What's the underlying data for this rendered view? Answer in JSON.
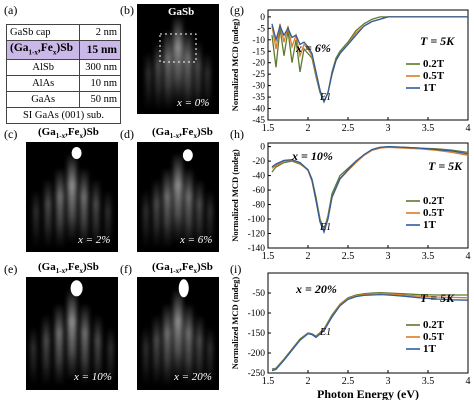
{
  "panel_labels": {
    "a": "(a)",
    "b": "(b)",
    "c": "(c)",
    "d": "(d)",
    "e": "(e)",
    "f": "(f)",
    "g": "(g)",
    "h": "(h)",
    "i": "(i)"
  },
  "stack": [
    {
      "layer": "GaSb cap",
      "thickness": "2 nm"
    },
    {
      "layer": "(Ga1-x,Fex)Sb",
      "thickness": "15 nm",
      "highlight": true
    },
    {
      "layer": "AlSb",
      "thickness": "300 nm"
    },
    {
      "layer": "AlAs",
      "thickness": "10 nm"
    },
    {
      "layer": "GaAs",
      "thickness": "50 nm"
    },
    {
      "layer": "SI GaAs (001) sub.",
      "thickness": ""
    }
  ],
  "rheed": {
    "b": {
      "title": "GaSb",
      "x": "x = 0%"
    },
    "c": {
      "title": "(Ga1-x,Fex)Sb",
      "x": "x = 2%"
    },
    "d": {
      "title": "(Ga1-x,Fex)Sb",
      "x": "x = 6%"
    },
    "e": {
      "title": "(Ga1-x,Fex)Sb",
      "x": "x = 10%"
    },
    "f": {
      "title": "(Ga1-x,Fex)Sb",
      "x": "x = 20%"
    }
  },
  "chart_data": [
    {
      "panel": "g",
      "type": "line",
      "ylabel": "Normalized MCD (mdeg)",
      "xlabel": "",
      "xlim": [
        1.5,
        4
      ],
      "ylim": [
        -45,
        3
      ],
      "xticks": [
        "1.5",
        "2",
        "2.5",
        "3",
        "3.5",
        "4"
      ],
      "yticks": [
        "0",
        "-5",
        "-10",
        "-15",
        "-20",
        "-25",
        "-30",
        "-35",
        "-40",
        "-45"
      ],
      "annotations": [
        "x = 6%",
        "T = 5K",
        "E1"
      ],
      "series": [
        {
          "name": "0.2T",
          "color": "#5e7a2c",
          "x": [
            1.55,
            1.6,
            1.65,
            1.7,
            1.75,
            1.8,
            1.85,
            1.9,
            1.95,
            2.0,
            2.05,
            2.1,
            2.15,
            2.2,
            2.25,
            2.3,
            2.35,
            2.4,
            2.5,
            2.6,
            2.7,
            2.8,
            2.9,
            3.0,
            3.2,
            3.4,
            3.6,
            3.8,
            4.0
          ],
          "y": [
            -8,
            -22,
            -5,
            -17,
            -6,
            -20,
            -10,
            -24,
            -14,
            -16,
            -18,
            -26,
            -33,
            -37,
            -33,
            -24,
            -18,
            -15,
            -11,
            -6,
            -3,
            -1,
            0,
            0,
            0,
            0,
            0,
            0,
            0
          ]
        },
        {
          "name": "0.5T",
          "color": "#d97d2a",
          "x": [
            1.55,
            1.6,
            1.65,
            1.7,
            1.75,
            1.8,
            1.85,
            1.9,
            1.95,
            2.0,
            2.05,
            2.1,
            2.15,
            2.2,
            2.25,
            2.3,
            2.35,
            2.4,
            2.5,
            2.6,
            2.7,
            2.8,
            2.9,
            3.0,
            3.2,
            3.4,
            3.6,
            3.8,
            4.0
          ],
          "y": [
            -4,
            -14,
            -3,
            -11,
            -4,
            -13,
            -8,
            -17,
            -12,
            -14,
            -17,
            -25,
            -32,
            -37,
            -33,
            -25,
            -19,
            -16,
            -12,
            -7,
            -4,
            -2,
            -1,
            0,
            0,
            0,
            0,
            0,
            0
          ]
        },
        {
          "name": "1T",
          "color": "#2f5d9e",
          "x": [
            1.55,
            1.6,
            1.65,
            1.7,
            1.75,
            1.8,
            1.85,
            1.9,
            1.95,
            2.0,
            2.05,
            2.1,
            2.15,
            2.2,
            2.25,
            2.3,
            2.35,
            2.4,
            2.5,
            2.6,
            2.7,
            2.8,
            2.9,
            3.0,
            3.2,
            3.4,
            3.6,
            3.8,
            4.0
          ],
          "y": [
            -3,
            -10,
            -4,
            -8,
            -5,
            -9,
            -8,
            -12,
            -11,
            -13,
            -16,
            -24,
            -32,
            -37,
            -33,
            -25,
            -19,
            -16,
            -12,
            -8,
            -4,
            -2,
            -1,
            0,
            0,
            0,
            0,
            0,
            0
          ]
        }
      ]
    },
    {
      "panel": "h",
      "type": "line",
      "ylabel": "Normalized MCD (mdeg)",
      "xlabel": "",
      "xlim": [
        1.5,
        4
      ],
      "ylim": [
        -140,
        5
      ],
      "xticks": [
        "1.5",
        "2",
        "2.5",
        "3",
        "3.5",
        "4"
      ],
      "yticks": [
        "0",
        "-20",
        "-40",
        "-60",
        "-80",
        "-100",
        "-120",
        "-140"
      ],
      "annotations": [
        "x = 10%",
        "T = 5K",
        "E1"
      ],
      "series": [
        {
          "name": "0.2T",
          "color": "#5e7a2c",
          "x": [
            1.55,
            1.6,
            1.7,
            1.8,
            1.9,
            2.0,
            2.05,
            2.1,
            2.15,
            2.2,
            2.25,
            2.3,
            2.4,
            2.5,
            2.6,
            2.7,
            2.8,
            2.9,
            3.0,
            3.2,
            3.4,
            3.6,
            3.8,
            4.0
          ],
          "y": [
            -35,
            -28,
            -22,
            -20,
            -24,
            -32,
            -45,
            -70,
            -100,
            -115,
            -95,
            -65,
            -40,
            -30,
            -20,
            -12,
            -5,
            -2,
            0,
            -1,
            -2,
            -3,
            -5,
            -8
          ]
        },
        {
          "name": "0.5T",
          "color": "#d97d2a",
          "x": [
            1.55,
            1.6,
            1.7,
            1.8,
            1.9,
            2.0,
            2.05,
            2.1,
            2.15,
            2.2,
            2.25,
            2.3,
            2.4,
            2.5,
            2.6,
            2.7,
            2.8,
            2.9,
            3.0,
            3.2,
            3.4,
            3.6,
            3.8,
            4.0
          ],
          "y": [
            -30,
            -26,
            -20,
            -19,
            -23,
            -33,
            -48,
            -75,
            -103,
            -116,
            -98,
            -70,
            -45,
            -33,
            -22,
            -12,
            -5,
            -2,
            -1,
            -2,
            -3,
            -5,
            -8,
            -12
          ]
        },
        {
          "name": "1T",
          "color": "#2f5d9e",
          "x": [
            1.55,
            1.6,
            1.7,
            1.8,
            1.9,
            2.0,
            2.05,
            2.1,
            2.15,
            2.2,
            2.25,
            2.3,
            2.4,
            2.5,
            2.6,
            2.7,
            2.8,
            2.9,
            3.0,
            3.2,
            3.4,
            3.6,
            3.8,
            4.0
          ],
          "y": [
            -28,
            -24,
            -19,
            -18,
            -22,
            -32,
            -46,
            -74,
            -104,
            -118,
            -100,
            -70,
            -44,
            -32,
            -20,
            -11,
            -4,
            -1,
            0,
            -1,
            -2,
            -4,
            -6,
            -10
          ]
        }
      ]
    },
    {
      "panel": "i",
      "type": "line",
      "ylabel": "Normalized MCD (mdeg)",
      "xlabel": "Photon Energy (eV)",
      "xlim": [
        1.5,
        4
      ],
      "ylim": [
        -250,
        0
      ],
      "xticks": [
        "1.5",
        "2",
        "2.5",
        "3",
        "3.5",
        "4"
      ],
      "yticks": [
        "-50",
        "-100",
        "-150",
        "-200",
        "-250"
      ],
      "annotations": [
        "x = 20%",
        "T = 5K",
        "E1"
      ],
      "series": [
        {
          "name": "0.2T",
          "color": "#5e7a2c",
          "x": [
            1.55,
            1.6,
            1.7,
            1.8,
            1.9,
            2.0,
            2.05,
            2.1,
            2.2,
            2.3,
            2.4,
            2.5,
            2.6,
            2.7,
            2.8,
            2.9,
            3.0,
            3.2,
            3.4,
            3.6,
            3.8,
            4.0
          ],
          "y": [
            -240,
            -238,
            -215,
            -190,
            -165,
            -150,
            -152,
            -158,
            -140,
            -105,
            -78,
            -62,
            -55,
            -52,
            -50,
            -49,
            -50,
            -52,
            -54,
            -55,
            -55,
            -55
          ]
        },
        {
          "name": "0.5T",
          "color": "#d97d2a",
          "x": [
            1.55,
            1.6,
            1.7,
            1.8,
            1.9,
            2.0,
            2.05,
            2.1,
            2.2,
            2.3,
            2.4,
            2.5,
            2.6,
            2.7,
            2.8,
            2.9,
            3.0,
            3.2,
            3.4,
            3.6,
            3.8,
            4.0
          ],
          "y": [
            -242,
            -240,
            -217,
            -192,
            -167,
            -151,
            -153,
            -160,
            -142,
            -108,
            -80,
            -64,
            -57,
            -54,
            -52,
            -51,
            -52,
            -55,
            -58,
            -60,
            -61,
            -62
          ]
        },
        {
          "name": "1T",
          "color": "#2f5d9e",
          "x": [
            1.55,
            1.6,
            1.7,
            1.8,
            1.9,
            2.0,
            2.05,
            2.1,
            2.2,
            2.3,
            2.4,
            2.5,
            2.6,
            2.7,
            2.8,
            2.9,
            3.0,
            3.2,
            3.4,
            3.6,
            3.8,
            4.0
          ],
          "y": [
            -244,
            -241,
            -218,
            -193,
            -168,
            -152,
            -154,
            -161,
            -144,
            -110,
            -82,
            -66,
            -59,
            -56,
            -55,
            -54,
            -55,
            -58,
            -62,
            -65,
            -67,
            -68
          ]
        }
      ]
    }
  ]
}
